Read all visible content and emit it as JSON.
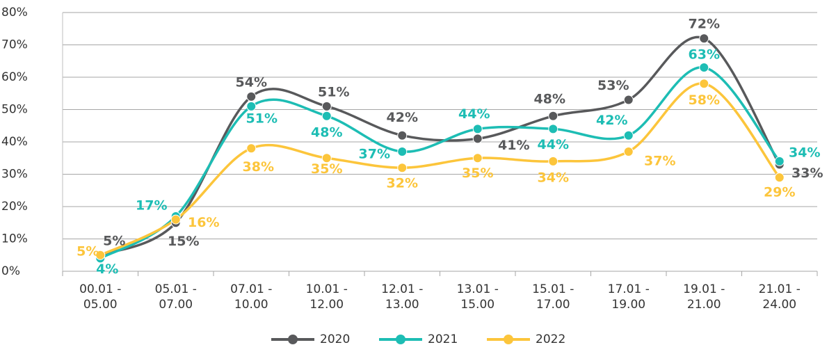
{
  "chart_data": {
    "type": "line",
    "categories": [
      "00.01 - 05.00",
      "05.01 - 07.00",
      "07.01 - 10.00",
      "10.01 - 12.00",
      "12.01 - 13.00",
      "13.01 - 15.00",
      "15.01 - 17.00",
      "17.01 - 19.00",
      "19.01 - 21.00",
      "21.01 - 24.00"
    ],
    "series": [
      {
        "name": "2020",
        "color": "#58595b",
        "values": [
          5,
          15,
          54,
          51,
          42,
          41,
          48,
          53,
          72,
          33
        ],
        "value_labels": [
          "5%",
          "15%",
          "54%",
          "51%",
          "42%",
          "41%",
          "48%",
          "53%",
          "72%",
          "33%"
        ]
      },
      {
        "name": "2021",
        "color": "#1dbdb4",
        "values": [
          4,
          17,
          51,
          48,
          37,
          44,
          44,
          42,
          63,
          34
        ],
        "value_labels": [
          "4%",
          "17%",
          "51%",
          "48%",
          "37%",
          "44%",
          "44%",
          "42%",
          "63%",
          "34%"
        ]
      },
      {
        "name": "2022",
        "color": "#fcc53b",
        "values": [
          5,
          16,
          38,
          35,
          32,
          35,
          34,
          37,
          58,
          29
        ],
        "value_labels": [
          "5%",
          "16%",
          "38%",
          "35%",
          "32%",
          "35%",
          "34%",
          "37%",
          "58%",
          "29%"
        ]
      }
    ],
    "ylim": [
      0,
      80
    ],
    "yticks": [
      {
        "value": 0,
        "label": "0%"
      },
      {
        "value": 10,
        "label": "10%"
      },
      {
        "value": 20,
        "label": "20%"
      },
      {
        "value": 30,
        "label": "30%"
      },
      {
        "value": 40,
        "label": "40%"
      },
      {
        "value": 50,
        "label": "50%"
      },
      {
        "value": 60,
        "label": "60%"
      },
      {
        "value": 70,
        "label": "70%"
      },
      {
        "value": 80,
        "label": "80%"
      }
    ],
    "grid": true,
    "legend": "bottom"
  }
}
